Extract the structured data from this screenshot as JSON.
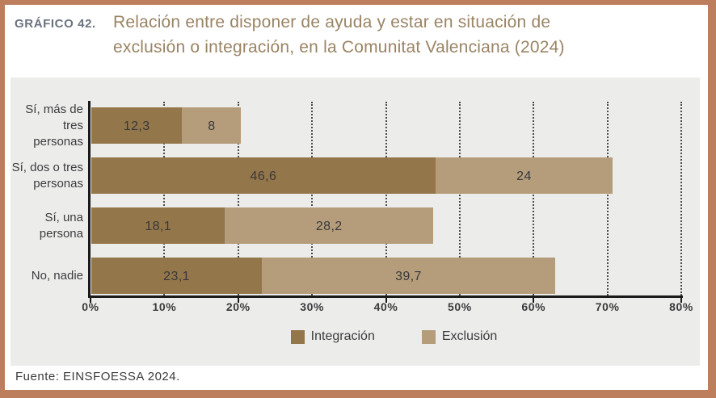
{
  "header": {
    "kicker": "GRÁFICO 42.",
    "title_line1": "Relación entre disponer de ayuda y estar en situación de",
    "title_line2": "exclusión o integración, en la Comunitat Valenciana (2024)"
  },
  "chart_data": {
    "type": "bar",
    "orientation": "horizontal",
    "stacked": true,
    "title": "Relación entre disponer de ayuda y estar en situación de exclusión o integración, en la Comunitat Valenciana (2024)",
    "categories": [
      "Sí, más de tres personas",
      "Sí, dos o tres personas",
      "Sí, una persona",
      "No, nadie"
    ],
    "category_lines": [
      [
        "Sí, más de",
        "tres personas"
      ],
      [
        "Sí, dos o tres",
        "personas"
      ],
      [
        "Sí, una",
        "persona"
      ],
      [
        "No, nadie"
      ]
    ],
    "series": [
      {
        "name": "Integración",
        "color": "#93764a",
        "values": [
          12.3,
          46.6,
          18.1,
          23.1
        ],
        "value_labels": [
          "12,3",
          "46,6",
          "18,1",
          "23,1"
        ]
      },
      {
        "name": "Exclusión",
        "color": "#b59c7b",
        "values": [
          8,
          24,
          28.2,
          39.7
        ],
        "value_labels": [
          "8",
          "24",
          "28,2",
          "39,7"
        ]
      }
    ],
    "xlim": [
      0,
      80
    ],
    "x_tick_step": 10,
    "x_tick_labels": [
      "0%",
      "10%",
      "20%",
      "30%",
      "40%",
      "50%",
      "60%",
      "70%",
      "80%"
    ],
    "grid": "dotted vertical gridlines every 10%",
    "legend_position": "bottom-center"
  },
  "footer": {
    "source": "Fuente: EINSFOESSA 2024."
  },
  "colors": {
    "frame_border": "#bd7e5e",
    "chart_background": "#ecedeb",
    "integracion": "#93764a",
    "exclusion": "#b59c7b",
    "title_text": "#9a8464",
    "kicker_text": "#6a7380",
    "body_text": "#3b3b3d",
    "axis_line": "#1a1a1a"
  }
}
